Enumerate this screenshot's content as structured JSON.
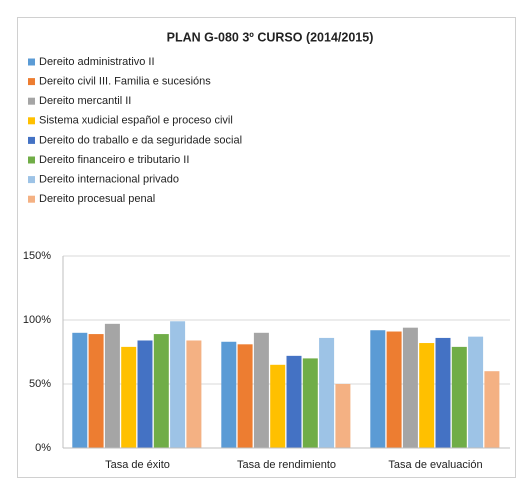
{
  "chart_data": {
    "type": "bar",
    "title": "PLAN G-080  3º CURSO (2014/2015)",
    "categories": [
      "Tasa de éxito",
      "Tasa de rendimiento",
      "Tasa de evaluación"
    ],
    "series": [
      {
        "name": "Dereito administrativo II",
        "color": "#5b9bd5",
        "values": [
          90,
          83,
          92
        ]
      },
      {
        "name": "Dereito civil III. Familia e sucesións",
        "color": "#ed7d31",
        "values": [
          89,
          81,
          91
        ]
      },
      {
        "name": "Dereito mercantil II",
        "color": "#a5a5a5",
        "values": [
          97,
          90,
          94
        ]
      },
      {
        "name": "Sistema xudicial español e proceso civil",
        "color": "#ffc000",
        "values": [
          79,
          65,
          82
        ]
      },
      {
        "name": "Dereito do traballo e da seguridade social",
        "color": "#4472c4",
        "values": [
          84,
          72,
          86
        ]
      },
      {
        "name": "Dereito financeiro e tributario II",
        "color": "#70ad47",
        "values": [
          89,
          70,
          79
        ]
      },
      {
        "name": "Dereito internacional privado",
        "color": "#9dc3e6",
        "values": [
          99,
          86,
          87
        ]
      },
      {
        "name": "Dereito procesual penal",
        "color": "#f4b183",
        "values": [
          84,
          50,
          60
        ]
      }
    ],
    "ylim": [
      0,
      150
    ],
    "yticks": [
      {
        "value": 0,
        "label": "0%"
      },
      {
        "value": 50,
        "label": "50%"
      },
      {
        "value": 100,
        "label": "100%"
      },
      {
        "value": 150,
        "label": "150%"
      }
    ],
    "grid": true,
    "legend": "top-left"
  }
}
